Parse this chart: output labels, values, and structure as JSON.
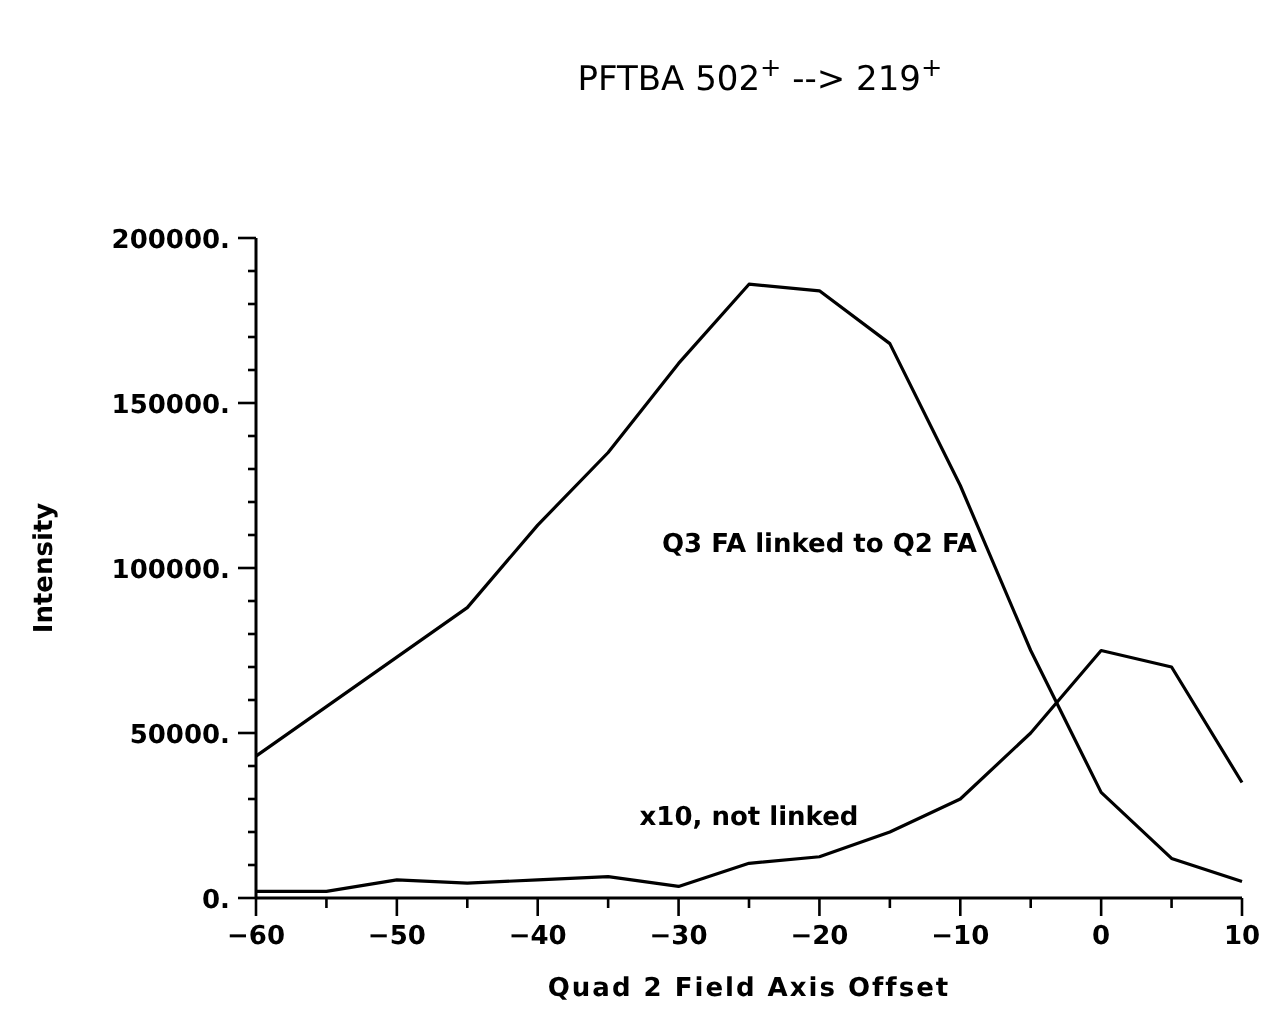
{
  "chart_data": {
    "type": "line",
    "title": "PFTBA 502$^{+}$ --> 219$^{+}$",
    "xlabel": "Quad 2 Field Axis Offset",
    "ylabel": "Intensity",
    "x": [
      -60,
      -55,
      -50,
      -45,
      -40,
      -35,
      -30,
      -25,
      -20,
      -15,
      -10,
      -5,
      0,
      5,
      10
    ],
    "series": [
      {
        "name": "Q3 FA linked to Q2 FA",
        "color": "#000000",
        "values": [
          43000,
          58000,
          73000,
          88000,
          113000,
          135000,
          162000,
          186000,
          184000,
          168000,
          125000,
          75000,
          32000,
          12000,
          5000
        ]
      },
      {
        "name": "x10, not linked",
        "color": "#000000",
        "values": [
          2000,
          2000,
          5500,
          4500,
          5500,
          6500,
          3500,
          10500,
          12500,
          20000,
          30000,
          50000,
          75000,
          70000,
          35000
        ]
      }
    ],
    "xlim": [
      -60,
      10
    ],
    "ylim": [
      0,
      200000
    ],
    "xticks": [
      -60,
      {
        "value": -55,
        "label": null
      },
      -50,
      {
        "value": -45,
        "label": null
      },
      -40,
      {
        "value": -35,
        "label": null
      },
      -30,
      {
        "value": -25,
        "label": null
      },
      -20,
      {
        "value": -15,
        "label": null
      },
      -10,
      {
        "value": -5,
        "label": null
      },
      0,
      {
        "value": 5,
        "label": null
      },
      10
    ],
    "yticks": [
      {
        "value": 0,
        "label": "0."
      },
      {
        "value": 10000,
        "label": null
      },
      {
        "value": 20000,
        "label": null
      },
      {
        "value": 30000,
        "label": null
      },
      {
        "value": 40000,
        "label": null
      },
      {
        "value": 50000,
        "label": "50000."
      },
      {
        "value": 60000,
        "label": null
      },
      {
        "value": 70000,
        "label": null
      },
      {
        "value": 80000,
        "label": null
      },
      {
        "value": 90000,
        "label": null
      },
      {
        "value": 100000,
        "label": "100000."
      },
      {
        "value": 110000,
        "label": null
      },
      {
        "value": 120000,
        "label": null
      },
      {
        "value": 130000,
        "label": null
      },
      {
        "value": 140000,
        "label": null
      },
      {
        "value": 150000,
        "label": "150000."
      },
      {
        "value": 160000,
        "label": null
      },
      {
        "value": 170000,
        "label": null
      },
      {
        "value": 180000,
        "label": null
      },
      {
        "value": 190000,
        "label": null
      },
      {
        "value": 200000,
        "label": "200000."
      }
    ],
    "grid": false,
    "marker": "none",
    "line_style": "solid"
  }
}
